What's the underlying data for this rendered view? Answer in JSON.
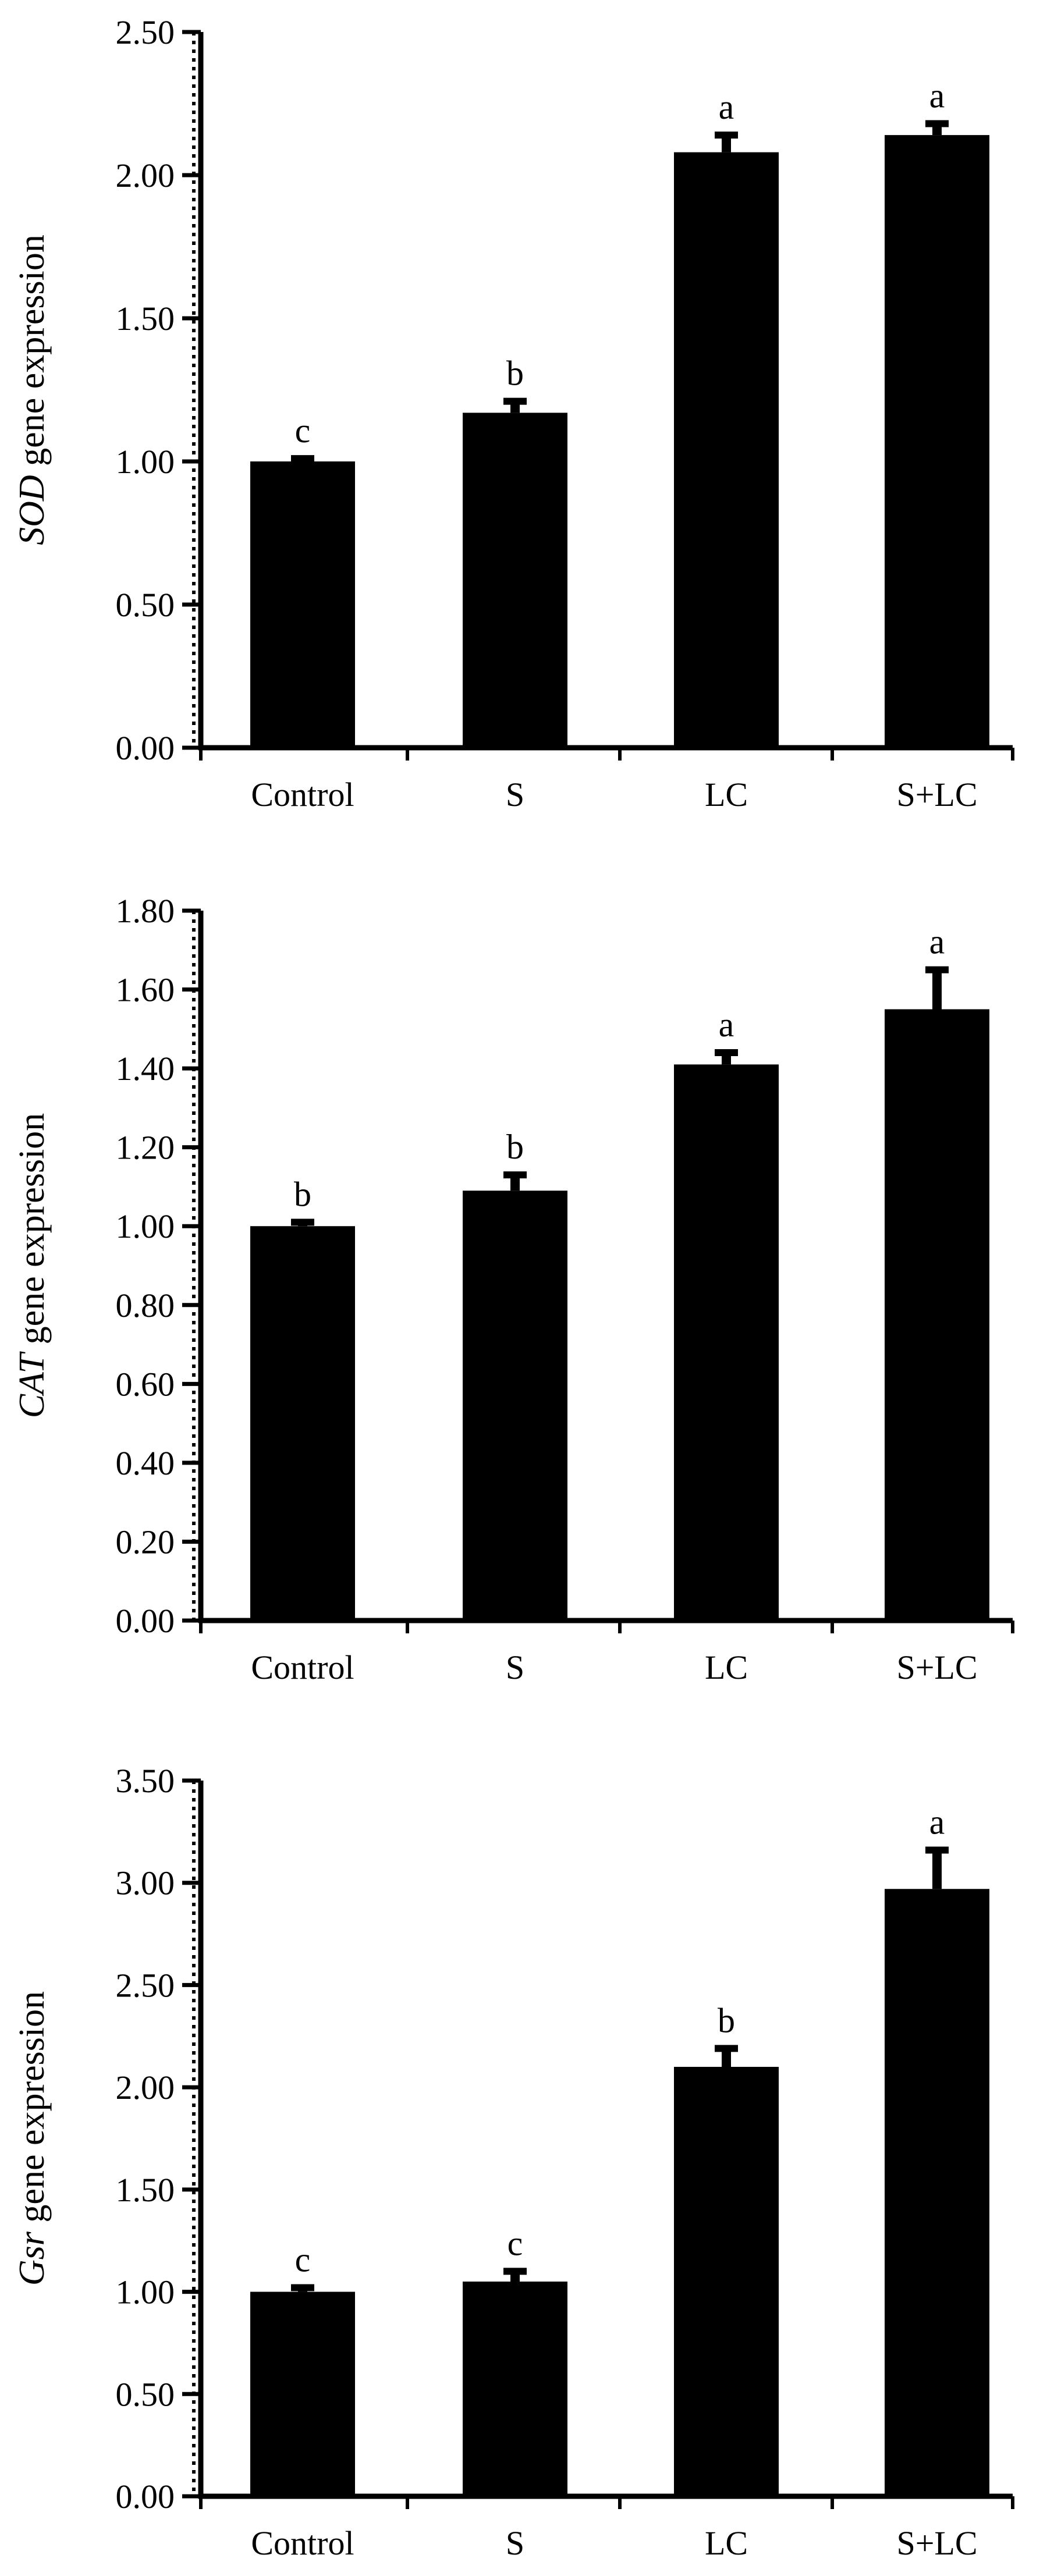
{
  "chart_data": [
    {
      "type": "bar",
      "title": "",
      "gene": "SOD",
      "ylabel_suffix": " gene expression",
      "categories": [
        "Control",
        "S",
        "LC",
        "S+LC"
      ],
      "values": [
        1.0,
        1.17,
        2.08,
        2.14
      ],
      "errors": [
        0.01,
        0.04,
        0.06,
        0.04
      ],
      "significance": [
        "c",
        "b",
        "a",
        "a"
      ],
      "ylim": [
        0,
        2.5
      ],
      "yticks": [
        "0.00",
        "0.50",
        "1.00",
        "1.50",
        "2.00",
        "2.50"
      ],
      "color": "#000000"
    },
    {
      "type": "bar",
      "title": "",
      "gene": "CAT",
      "ylabel_suffix": " gene expression",
      "categories": [
        "Control",
        "S",
        "LC",
        "S+LC"
      ],
      "values": [
        1.0,
        1.09,
        1.41,
        1.55
      ],
      "errors": [
        0.01,
        0.04,
        0.03,
        0.1
      ],
      "significance": [
        "b",
        "b",
        "a",
        "a"
      ],
      "ylim": [
        0,
        1.8
      ],
      "yticks": [
        "0.00",
        "0.20",
        "0.40",
        "0.60",
        "0.80",
        "1.00",
        "1.20",
        "1.40",
        "1.60",
        "1.80"
      ],
      "color": "#000000"
    },
    {
      "type": "bar",
      "title": "",
      "gene": "Gsr",
      "ylabel_suffix": " gene expression",
      "categories": [
        "Control",
        "S",
        "LC",
        "S+LC"
      ],
      "values": [
        1.0,
        1.05,
        2.1,
        2.97
      ],
      "errors": [
        0.02,
        0.05,
        0.09,
        0.19
      ],
      "significance": [
        "c",
        "c",
        "b",
        "a"
      ],
      "ylim": [
        0,
        3.5
      ],
      "yticks": [
        "0.00",
        "0.50",
        "1.00",
        "1.50",
        "2.00",
        "2.50",
        "3.00",
        "3.50"
      ],
      "color": "#000000"
    }
  ]
}
